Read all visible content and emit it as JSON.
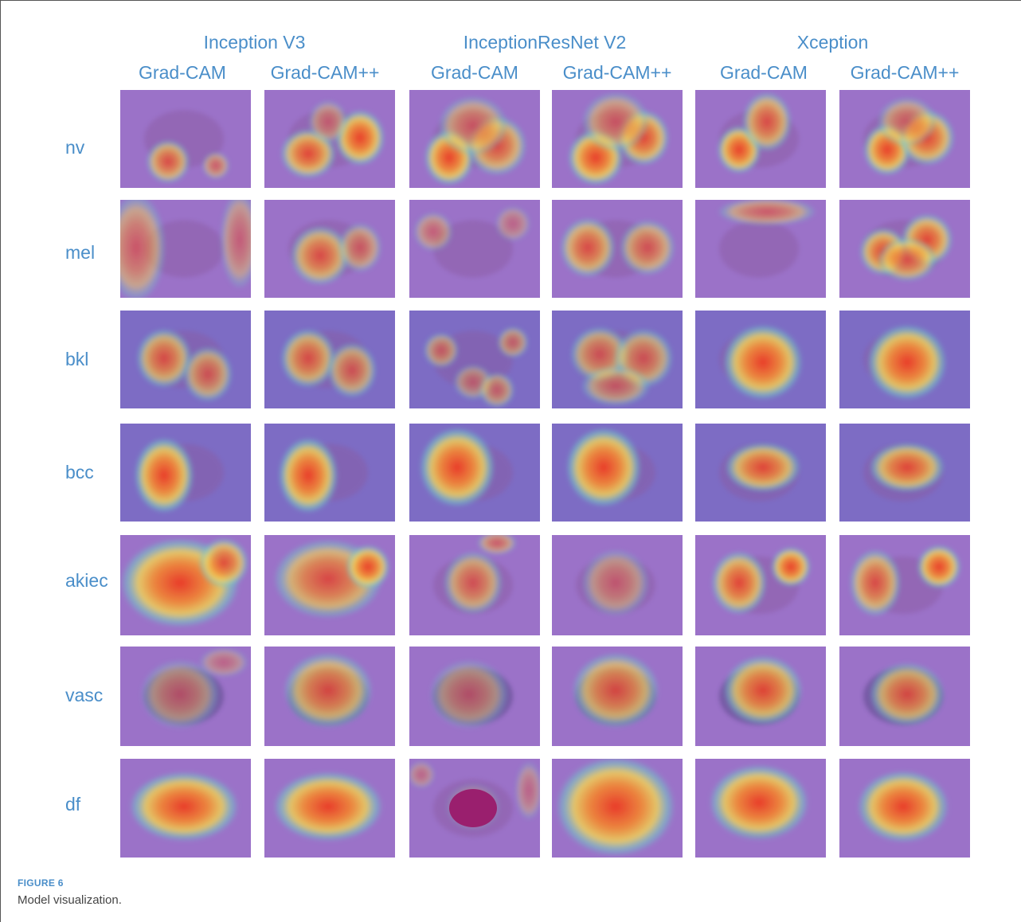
{
  "figure": {
    "models": [
      "Inception V3",
      "InceptionResNet V2",
      "Xception"
    ],
    "methods": [
      "Grad-CAM",
      "Grad-CAM++"
    ],
    "classes": [
      "nv",
      "mel",
      "bkl",
      "bcc",
      "akiec",
      "vasc",
      "df"
    ],
    "caption_label": "FIGURE 6",
    "caption_text": "Model visualization.",
    "colors": {
      "label_blue": "#4a8ec9",
      "caption_gray": "#444444",
      "heat_background": "#9b72c8",
      "heat_low": "#6fc7c9",
      "heat_mid": "#f1d55a",
      "heat_high": "#e8392a"
    }
  }
}
